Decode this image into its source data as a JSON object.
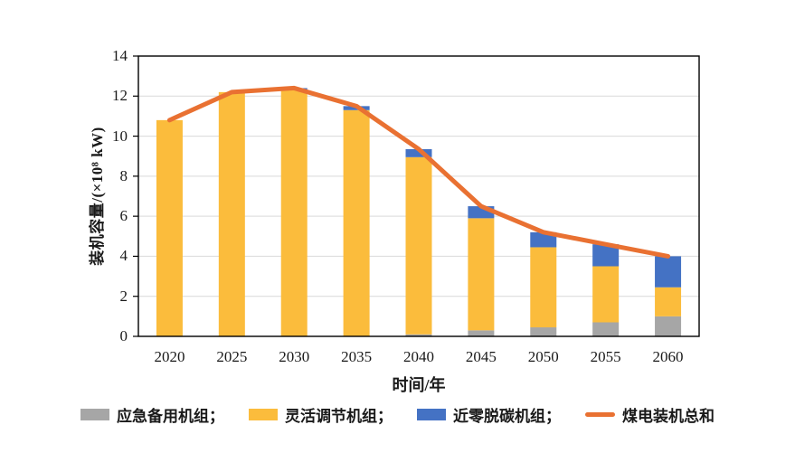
{
  "chart_data": {
    "type": "bar",
    "stacked": true,
    "title": "",
    "xlabel": "时间/年",
    "ylabel": "装机容量/(×10⁸ kW)",
    "categories": [
      "2020",
      "2025",
      "2030",
      "2035",
      "2040",
      "2045",
      "2050",
      "2055",
      "2060"
    ],
    "series": [
      {
        "name": "应急备用机组",
        "type": "bar",
        "color": "#A6A6A6",
        "values": [
          0,
          0,
          0,
          0,
          0.1,
          0.3,
          0.45,
          0.7,
          1.0
        ]
      },
      {
        "name": "灵活调节机组",
        "type": "bar",
        "color": "#FBBC3C",
        "values": [
          10.8,
          12.2,
          12.3,
          11.3,
          8.85,
          5.6,
          4.0,
          2.8,
          1.45
        ]
      },
      {
        "name": "近零脱碳机组",
        "type": "bar",
        "color": "#4472C4",
        "values": [
          0,
          0,
          0.1,
          0.2,
          0.4,
          0.6,
          0.75,
          1.1,
          1.55
        ]
      },
      {
        "name": "煤电装机总和",
        "type": "line",
        "color": "#E97132",
        "values": [
          10.8,
          12.2,
          12.4,
          11.5,
          9.35,
          6.5,
          5.2,
          4.6,
          4.0
        ]
      }
    ],
    "ylim": [
      0,
      14
    ],
    "yticks": [
      0,
      2,
      4,
      6,
      8,
      10,
      12,
      14
    ],
    "grid": true,
    "gridline_color": "#D9D9D9",
    "axis_color": "#000000",
    "legend_position": "bottom"
  },
  "axes": {
    "x_title": "时间/年",
    "y_title": "装机容量/(×10⁸ kW)"
  },
  "legend": {
    "items": [
      {
        "label": "应急备用机组；"
      },
      {
        "label": "灵活调节机组；"
      },
      {
        "label": "近零脱碳机组；"
      },
      {
        "label": "煤电装机总和"
      }
    ]
  }
}
